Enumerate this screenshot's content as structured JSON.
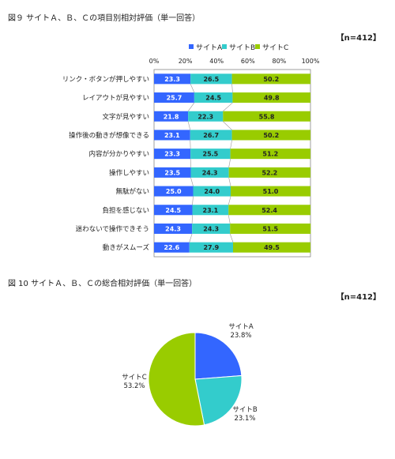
{
  "figure9": {
    "title": "図９ サイトＡ、Ｂ、Ｃの項目別相対評価（単一回答）",
    "n_label": "【n=412】"
  },
  "figure10": {
    "title": "図 10 サイトＡ、Ｂ、Ｃの総合相対評価（単一回答）",
    "n_label": "【n=412】"
  },
  "colors": {
    "A": "#3366ff",
    "B": "#33cccc",
    "C": "#99cc00"
  },
  "chart_data": [
    {
      "type": "bar",
      "orientation": "horizontal",
      "stacked": "percent",
      "title": "図９ サイトＡ、Ｂ、Ｃの項目別相対評価（単一回答）",
      "xlim": [
        0,
        100
      ],
      "x_ticks": [
        "0%",
        "20%",
        "40%",
        "60%",
        "80%",
        "100%"
      ],
      "legend_position": "top",
      "categories": [
        "リンク・ボタンが押しやすい",
        "レイアウトが見やすい",
        "文字が見やすい",
        "操作後の動きが想像できる",
        "内容が分かりやすい",
        "操作しやすい",
        "無駄がない",
        "負担を感じない",
        "迷わないで操作できそう",
        "動きがスムーズ"
      ],
      "series": [
        {
          "name": "サイトA",
          "values": [
            23.3,
            25.7,
            21.8,
            23.1,
            23.3,
            23.5,
            25.0,
            24.5,
            24.3,
            22.6
          ]
        },
        {
          "name": "サイトB",
          "values": [
            26.5,
            24.5,
            22.3,
            26.7,
            25.5,
            24.3,
            24.0,
            23.1,
            24.3,
            27.9
          ]
        },
        {
          "name": "サイトC",
          "values": [
            50.2,
            49.8,
            55.8,
            50.2,
            51.2,
            52.2,
            51.0,
            52.4,
            51.5,
            49.5
          ]
        }
      ]
    },
    {
      "type": "pie",
      "title": "図 10 サイトＡ、Ｂ、Ｃの総合相対評価（単一回答）",
      "slices": [
        {
          "name": "サイトA",
          "value": 23.8,
          "label": "23.8%"
        },
        {
          "name": "サイトB",
          "value": 23.1,
          "label": "23.1%"
        },
        {
          "name": "サイトC",
          "value": 53.2,
          "label": "53.2%"
        }
      ]
    }
  ]
}
